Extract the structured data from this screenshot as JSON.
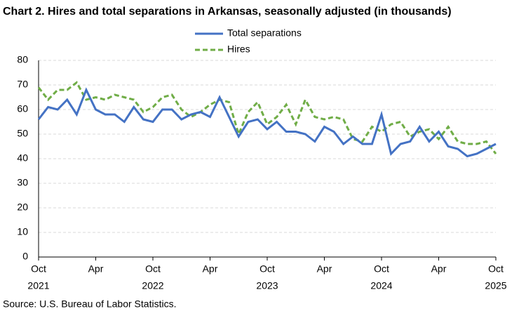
{
  "chart_data": {
    "type": "line",
    "title": "Chart 2. Hires and total separations in Arkansas, seasonally adjusted (in thousands)",
    "source": "Source: U.S. Bureau of Labor Statistics.",
    "categories": [
      "Oct",
      null,
      null,
      null,
      null,
      null,
      "Apr",
      null,
      null,
      null,
      null,
      null,
      "Oct",
      null,
      null,
      null,
      null,
      null,
      "Apr",
      null,
      null,
      null,
      null,
      null,
      "Oct",
      null,
      null,
      null,
      null,
      null,
      "Apr",
      null,
      null,
      null,
      null,
      null,
      "Oct",
      null,
      null,
      null,
      null,
      null,
      "Apr",
      null,
      null,
      null,
      null,
      null,
      "Oct"
    ],
    "years": [
      "2021",
      "2022",
      "2023",
      "2024",
      "2025"
    ],
    "series": [
      {
        "name": "Total separations",
        "color": "#4472c4",
        "dash": false,
        "values": [
          56,
          61,
          60,
          64,
          58,
          68,
          60,
          58,
          58,
          55,
          61,
          56,
          55,
          60,
          60,
          56,
          58,
          59,
          57,
          65,
          57,
          49,
          55,
          56,
          52,
          55,
          51,
          51,
          50,
          47,
          53,
          51,
          46,
          49,
          46,
          46,
          58,
          42,
          46,
          47,
          53,
          47,
          51,
          45,
          44,
          41,
          42,
          44,
          46
        ]
      },
      {
        "name": "Hires",
        "color": "#70ad47",
        "dash": true,
        "values": [
          69,
          64,
          68,
          68,
          71,
          64,
          65,
          64,
          66,
          65,
          64,
          59,
          61,
          65,
          66,
          60,
          57,
          59,
          62,
          64,
          63,
          50,
          59,
          63,
          54,
          57,
          62,
          54,
          64,
          57,
          56,
          57,
          56,
          48,
          47,
          53,
          51,
          54,
          55,
          49,
          51,
          52,
          48,
          53,
          47,
          46,
          46,
          47,
          42
        ]
      }
    ],
    "ylim": [
      0,
      80
    ],
    "yticks": [
      0,
      10,
      20,
      30,
      40,
      50,
      60,
      70,
      80
    ],
    "grid": true
  }
}
